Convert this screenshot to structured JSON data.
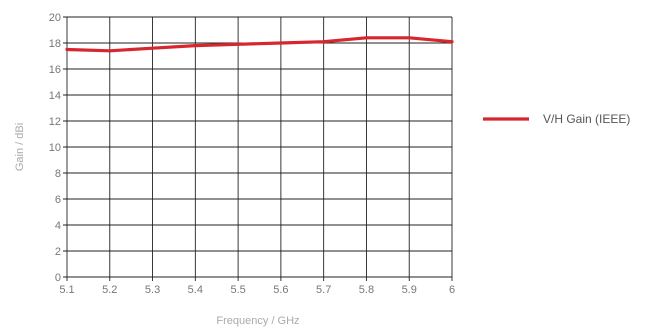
{
  "chart_data": {
    "type": "line",
    "xlabel": "Frequency / GHz",
    "ylabel": "Gain / dBi",
    "xlim": [
      5.1,
      6
    ],
    "ylim": [
      0,
      20
    ],
    "x_ticks": [
      "5.1",
      "5.2",
      "5.3",
      "5.4",
      "5.5",
      "5.6",
      "5.7",
      "5.8",
      "5.9",
      "6"
    ],
    "y_ticks": [
      "0",
      "2",
      "4",
      "6",
      "8",
      "10",
      "12",
      "14",
      "16",
      "18",
      "20"
    ],
    "grid": true,
    "legend_position": "right",
    "series": [
      {
        "name": "V/H Gain (IEEE)",
        "color": "#d7262d",
        "x": [
          5.1,
          5.2,
          5.3,
          5.4,
          5.5,
          5.6,
          5.7,
          5.8,
          5.9,
          6.0
        ],
        "y": [
          17.5,
          17.4,
          17.6,
          17.8,
          17.9,
          18.0,
          18.1,
          18.4,
          18.4,
          18.1
        ]
      }
    ]
  }
}
